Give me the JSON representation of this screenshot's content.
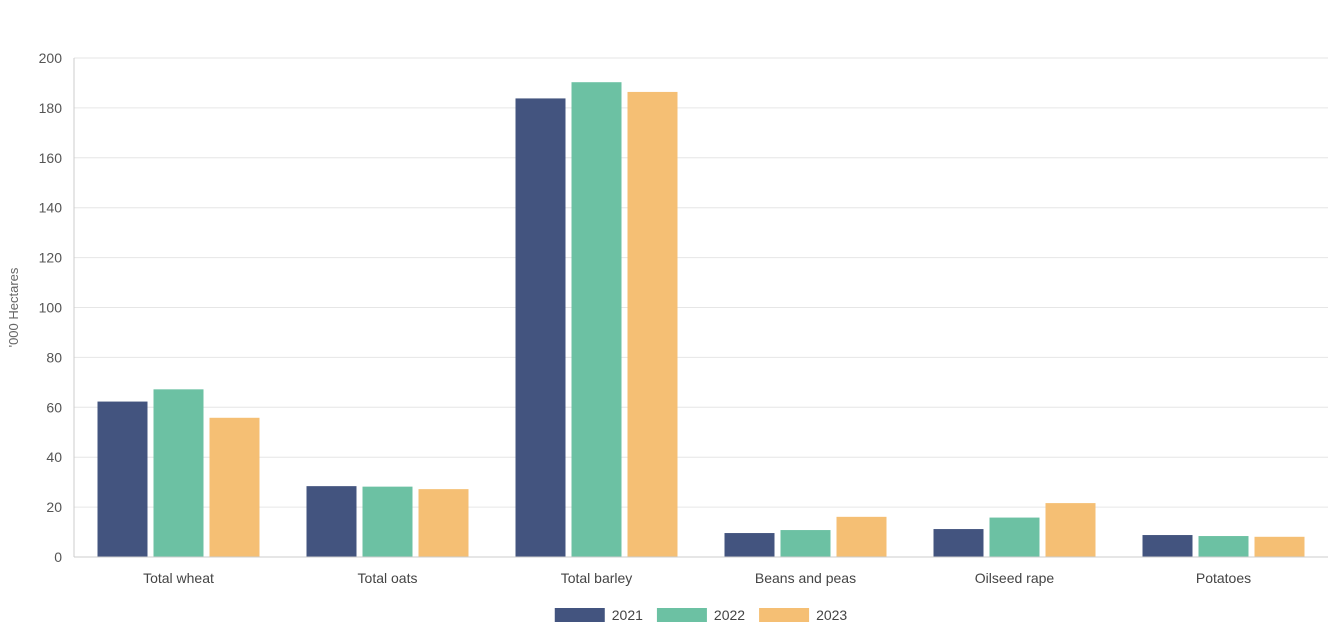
{
  "chart_data": {
    "type": "bar",
    "title": "",
    "xlabel": "",
    "ylabel": "'000 Hectares",
    "ylim": [
      0,
      200
    ],
    "yticks": [
      0,
      20,
      40,
      60,
      80,
      100,
      120,
      140,
      160,
      180,
      200
    ],
    "grid": true,
    "legend_position": "bottom",
    "categories": [
      "Total wheat",
      "Total oats",
      "Total barley",
      "Beans and peas",
      "Oilseed rape",
      "Potatoes"
    ],
    "series": [
      {
        "name": "2021",
        "color": "#43547f",
        "values": [
          62.3,
          28.4,
          183.8,
          9.6,
          11.2,
          8.8
        ]
      },
      {
        "name": "2022",
        "color": "#6cc1a3",
        "values": [
          67.2,
          28.2,
          190.3,
          10.8,
          15.8,
          8.4
        ]
      },
      {
        "name": "2023",
        "color": "#f5bf74",
        "values": [
          55.8,
          27.2,
          186.4,
          16.1,
          21.6,
          8.1
        ]
      }
    ]
  }
}
